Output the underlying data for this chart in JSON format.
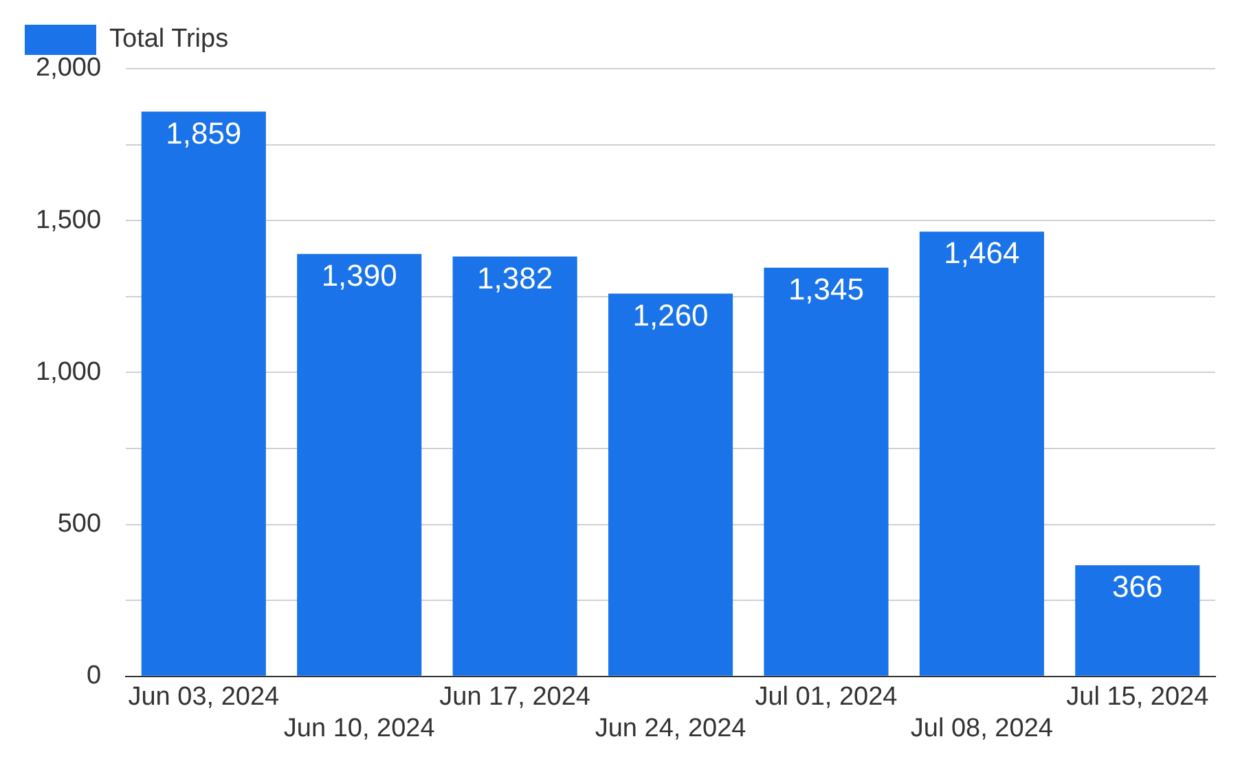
{
  "chart_data": {
    "type": "bar",
    "categories": [
      "Jun 03, 2024",
      "Jun 10, 2024",
      "Jun 17, 2024",
      "Jun 24, 2024",
      "Jul 01, 2024",
      "Jul 08, 2024",
      "Jul 15, 2024"
    ],
    "series": [
      {
        "name": "Total Trips",
        "color": "#1a73e8",
        "values": [
          1859,
          1390,
          1382,
          1260,
          1345,
          1464,
          366
        ],
        "value_labels": [
          "1,859",
          "1,390",
          "1,382",
          "1,260",
          "1,345",
          "1,464",
          "366"
        ]
      }
    ],
    "ylim": [
      0,
      2000
    ],
    "yticks": [
      0,
      {
        "value": 250,
        "label": null
      },
      {
        "value": 500,
        "label": "500"
      },
      {
        "value": 750,
        "label": null
      },
      {
        "value": 1000,
        "label": "1,000"
      },
      {
        "value": 1250,
        "label": null
      },
      {
        "value": 1500,
        "label": "1,500"
      },
      {
        "value": 1750,
        "label": null
      },
      {
        "value": 2000,
        "label": "2,000"
      }
    ],
    "grid": "y",
    "legend": "top left"
  }
}
